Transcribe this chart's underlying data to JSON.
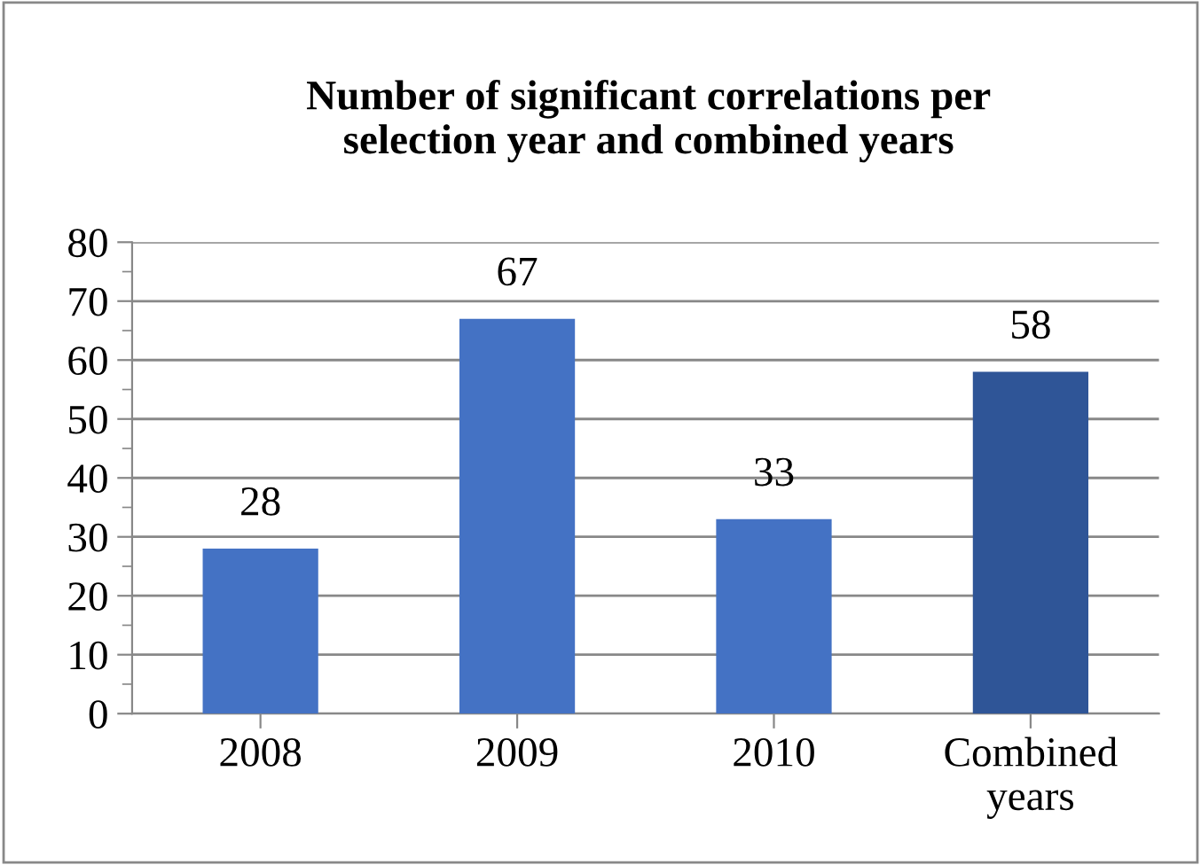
{
  "chart_data": {
    "type": "bar",
    "title": "Number of significant correlations per\nselection year and combined years",
    "categories": [
      "2008",
      "2009",
      "2010",
      "Combined\nyears"
    ],
    "values": [
      28,
      67,
      33,
      58
    ],
    "colors": [
      "#4472c4",
      "#4472c4",
      "#4472c4",
      "#2f5597"
    ],
    "ylim": [
      0,
      80
    ],
    "yticks": [
      0,
      10,
      20,
      30,
      40,
      50,
      60,
      70,
      80
    ],
    "grid": "y",
    "data_labels": true
  }
}
